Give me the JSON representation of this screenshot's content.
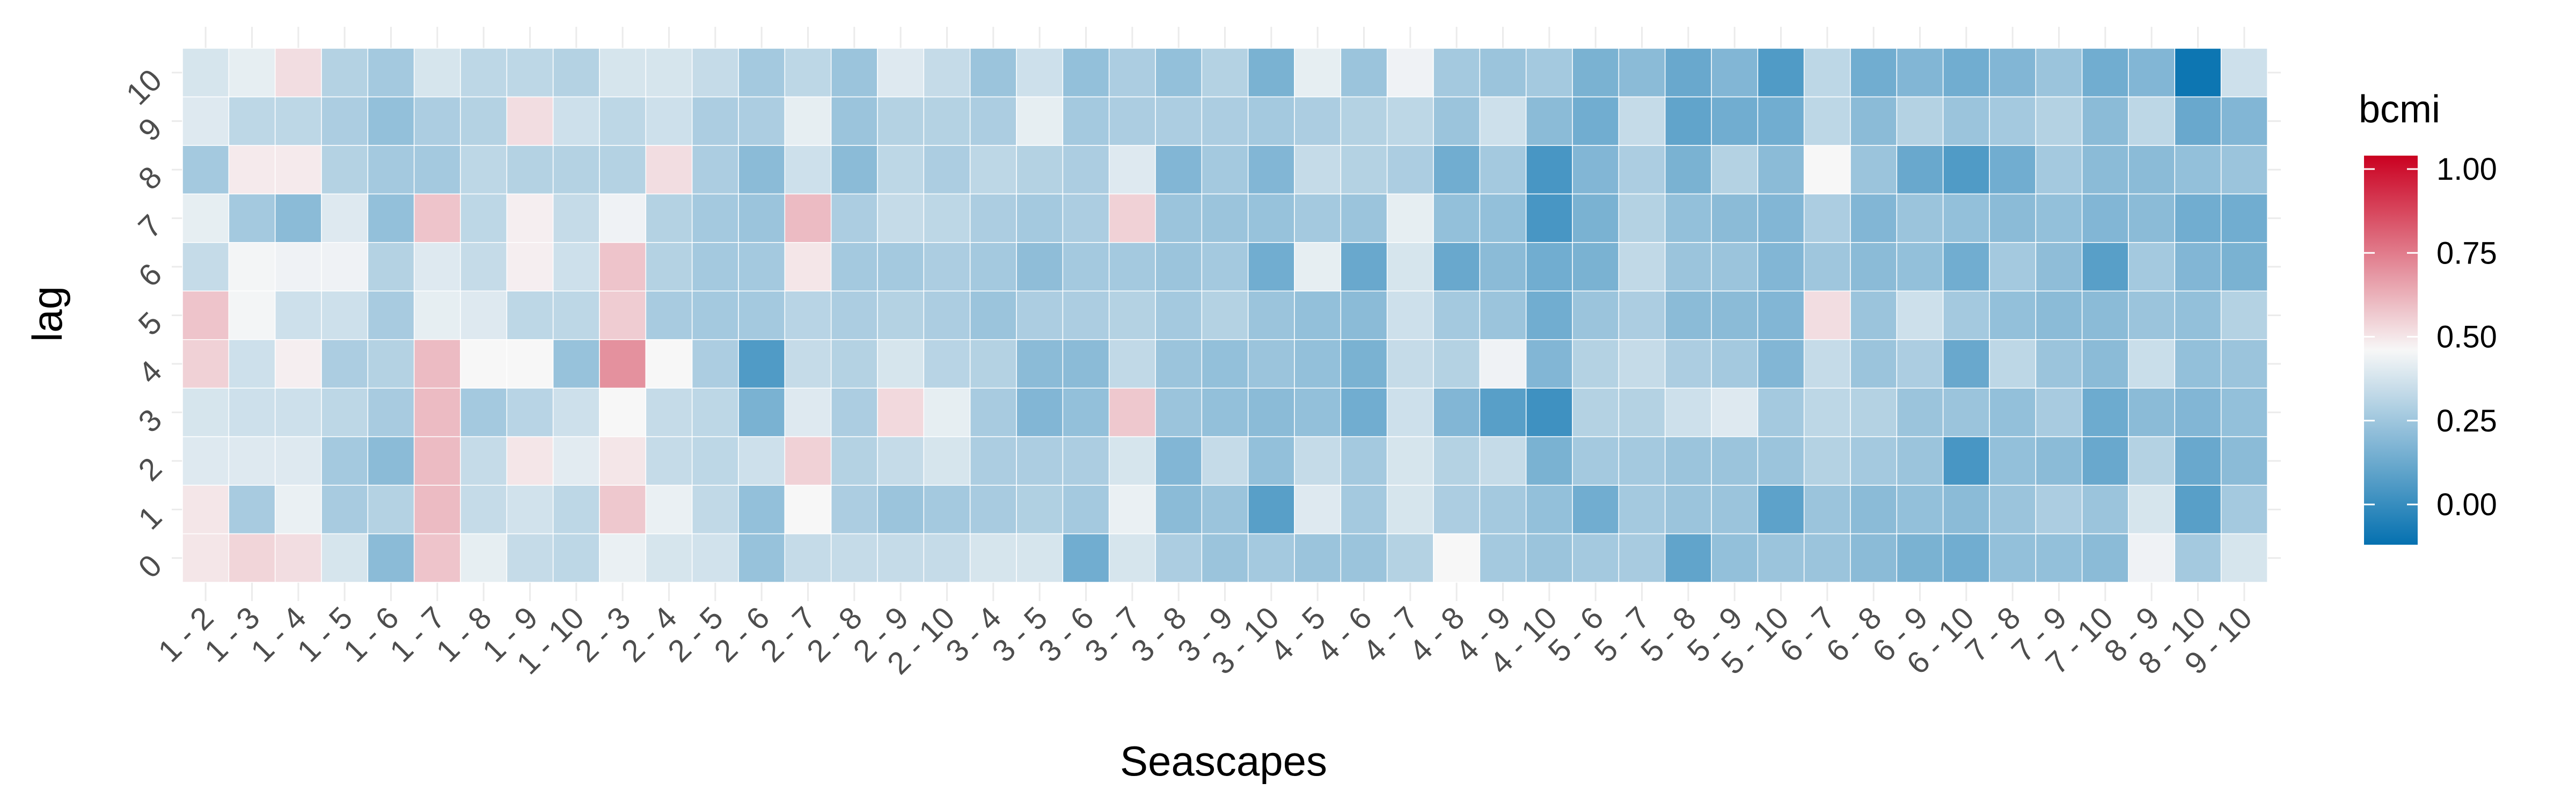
{
  "chart_data": {
    "type": "heatmap",
    "xlabel": "Seascapes",
    "ylabel": "lag",
    "categories": [
      "1 - 2",
      "1 - 3",
      "1 - 4",
      "1 - 5",
      "1 - 6",
      "1 - 7",
      "1 - 8",
      "1 - 9",
      "1 - 10",
      "2 - 3",
      "2 - 4",
      "2 - 5",
      "2 - 6",
      "2 - 7",
      "2 - 8",
      "2 - 9",
      "2 - 10",
      "3 - 4",
      "3 - 5",
      "3 - 6",
      "3 - 7",
      "3 - 8",
      "3 - 9",
      "3 - 10",
      "4 - 5",
      "4 - 6",
      "4 - 7",
      "4 - 8",
      "4 - 9",
      "4 - 10",
      "5 - 6",
      "5 - 7",
      "5 - 8",
      "5 - 9",
      "5 - 10",
      "6 - 7",
      "6 - 8",
      "6 - 9",
      "6 - 10",
      "7 - 8",
      "7 - 9",
      "7 - 10",
      "8 - 9",
      "8 - 10",
      "9 - 10"
    ],
    "y": [
      "0",
      "1",
      "2",
      "3",
      "4",
      "5",
      "6",
      "7",
      "8",
      "9",
      "10"
    ],
    "legend": {
      "title": "bcmi",
      "position": "right",
      "breaks": [
        1.0,
        0.75,
        0.5,
        0.25,
        0.0
      ],
      "labels": [
        "1.00",
        "0.75",
        "0.50",
        "0.25",
        "0.00"
      ],
      "limits": [
        -0.12,
        1.04
      ]
    },
    "color_scale": {
      "low": "#0571b0",
      "mid": "#f7f7f7",
      "high": "#ca0020",
      "midpoint": 0.46
    },
    "grid": true,
    "values": [
      [
        0.5,
        0.54,
        0.52,
        0.38,
        0.2,
        0.58,
        0.42,
        0.34,
        0.32,
        0.43,
        0.38,
        0.37,
        0.23,
        0.34,
        0.34,
        0.34,
        0.34,
        0.38,
        0.38,
        0.14,
        0.38,
        0.28,
        0.24,
        0.26,
        0.24,
        0.24,
        0.3,
        0.46,
        0.26,
        0.24,
        0.26,
        0.27,
        0.1,
        0.22,
        0.24,
        0.24,
        0.2,
        0.16,
        0.14,
        0.22,
        0.22,
        0.2,
        0.44,
        0.26,
        0.38
      ],
      [
        0.5,
        0.27,
        0.43,
        0.27,
        0.3,
        0.6,
        0.34,
        0.37,
        0.32,
        0.57,
        0.43,
        0.33,
        0.22,
        0.46,
        0.28,
        0.24,
        0.26,
        0.27,
        0.29,
        0.26,
        0.43,
        0.2,
        0.24,
        0.08,
        0.4,
        0.26,
        0.38,
        0.28,
        0.26,
        0.22,
        0.14,
        0.26,
        0.24,
        0.24,
        0.09,
        0.24,
        0.2,
        0.22,
        0.2,
        0.24,
        0.28,
        0.24,
        0.38,
        0.08,
        0.26
      ],
      [
        0.4,
        0.4,
        0.4,
        0.26,
        0.2,
        0.6,
        0.34,
        0.5,
        0.41,
        0.5,
        0.34,
        0.32,
        0.36,
        0.55,
        0.3,
        0.34,
        0.38,
        0.28,
        0.28,
        0.28,
        0.38,
        0.18,
        0.34,
        0.22,
        0.34,
        0.26,
        0.38,
        0.3,
        0.34,
        0.16,
        0.26,
        0.26,
        0.24,
        0.24,
        0.24,
        0.3,
        0.26,
        0.24,
        0.04,
        0.22,
        0.2,
        0.12,
        0.3,
        0.12,
        0.2
      ],
      [
        0.38,
        0.36,
        0.36,
        0.32,
        0.27,
        0.6,
        0.26,
        0.31,
        0.36,
        0.46,
        0.34,
        0.32,
        0.16,
        0.4,
        0.28,
        0.53,
        0.42,
        0.27,
        0.18,
        0.22,
        0.57,
        0.24,
        0.22,
        0.2,
        0.22,
        0.14,
        0.36,
        0.18,
        0.08,
        0.02,
        0.3,
        0.3,
        0.36,
        0.4,
        0.26,
        0.32,
        0.3,
        0.24,
        0.24,
        0.22,
        0.27,
        0.13,
        0.2,
        0.18,
        0.22
      ],
      [
        0.55,
        0.36,
        0.48,
        0.28,
        0.3,
        0.6,
        0.46,
        0.46,
        0.23,
        0.7,
        0.46,
        0.28,
        0.06,
        0.34,
        0.3,
        0.38,
        0.31,
        0.3,
        0.2,
        0.2,
        0.33,
        0.24,
        0.22,
        0.24,
        0.22,
        0.16,
        0.34,
        0.3,
        0.44,
        0.18,
        0.3,
        0.34,
        0.28,
        0.26,
        0.18,
        0.34,
        0.24,
        0.28,
        0.12,
        0.32,
        0.24,
        0.2,
        0.35,
        0.22,
        0.24
      ],
      [
        0.58,
        0.45,
        0.36,
        0.36,
        0.27,
        0.42,
        0.4,
        0.32,
        0.32,
        0.56,
        0.27,
        0.26,
        0.26,
        0.31,
        0.28,
        0.3,
        0.28,
        0.24,
        0.28,
        0.28,
        0.3,
        0.26,
        0.3,
        0.24,
        0.22,
        0.2,
        0.36,
        0.26,
        0.24,
        0.14,
        0.24,
        0.28,
        0.2,
        0.2,
        0.18,
        0.52,
        0.24,
        0.36,
        0.26,
        0.22,
        0.2,
        0.2,
        0.24,
        0.22,
        0.3
      ],
      [
        0.34,
        0.45,
        0.44,
        0.44,
        0.3,
        0.4,
        0.34,
        0.48,
        0.36,
        0.58,
        0.3,
        0.26,
        0.26,
        0.5,
        0.26,
        0.26,
        0.28,
        0.26,
        0.21,
        0.26,
        0.26,
        0.24,
        0.26,
        0.14,
        0.42,
        0.12,
        0.38,
        0.12,
        0.2,
        0.14,
        0.16,
        0.33,
        0.24,
        0.24,
        0.18,
        0.25,
        0.2,
        0.22,
        0.14,
        0.26,
        0.21,
        0.08,
        0.26,
        0.18,
        0.16
      ],
      [
        0.42,
        0.26,
        0.2,
        0.4,
        0.22,
        0.58,
        0.32,
        0.48,
        0.34,
        0.44,
        0.3,
        0.26,
        0.24,
        0.6,
        0.28,
        0.34,
        0.32,
        0.28,
        0.26,
        0.28,
        0.55,
        0.24,
        0.24,
        0.23,
        0.26,
        0.24,
        0.42,
        0.22,
        0.22,
        0.04,
        0.16,
        0.3,
        0.22,
        0.2,
        0.18,
        0.28,
        0.18,
        0.24,
        0.22,
        0.2,
        0.22,
        0.18,
        0.2,
        0.14,
        0.14
      ],
      [
        0.26,
        0.49,
        0.49,
        0.3,
        0.26,
        0.26,
        0.32,
        0.3,
        0.3,
        0.3,
        0.52,
        0.28,
        0.2,
        0.36,
        0.2,
        0.32,
        0.28,
        0.32,
        0.3,
        0.28,
        0.4,
        0.18,
        0.26,
        0.18,
        0.34,
        0.3,
        0.28,
        0.14,
        0.26,
        0.04,
        0.18,
        0.28,
        0.16,
        0.3,
        0.2,
        0.46,
        0.24,
        0.12,
        0.06,
        0.14,
        0.26,
        0.2,
        0.2,
        0.22,
        0.24
      ],
      [
        0.4,
        0.32,
        0.32,
        0.28,
        0.22,
        0.28,
        0.3,
        0.52,
        0.36,
        0.32,
        0.36,
        0.28,
        0.28,
        0.42,
        0.24,
        0.3,
        0.3,
        0.28,
        0.42,
        0.26,
        0.28,
        0.28,
        0.28,
        0.26,
        0.28,
        0.3,
        0.32,
        0.24,
        0.36,
        0.2,
        0.14,
        0.34,
        0.1,
        0.14,
        0.14,
        0.32,
        0.2,
        0.3,
        0.24,
        0.26,
        0.3,
        0.2,
        0.32,
        0.12,
        0.18
      ],
      [
        0.38,
        0.42,
        0.52,
        0.3,
        0.26,
        0.38,
        0.32,
        0.32,
        0.3,
        0.38,
        0.38,
        0.34,
        0.26,
        0.32,
        0.24,
        0.4,
        0.34,
        0.24,
        0.36,
        0.22,
        0.28,
        0.22,
        0.3,
        0.16,
        0.42,
        0.24,
        0.44,
        0.26,
        0.24,
        0.26,
        0.16,
        0.2,
        0.12,
        0.18,
        0.06,
        0.32,
        0.14,
        0.18,
        0.14,
        0.18,
        0.24,
        0.14,
        0.18,
        -0.1,
        0.36
      ]
    ]
  }
}
